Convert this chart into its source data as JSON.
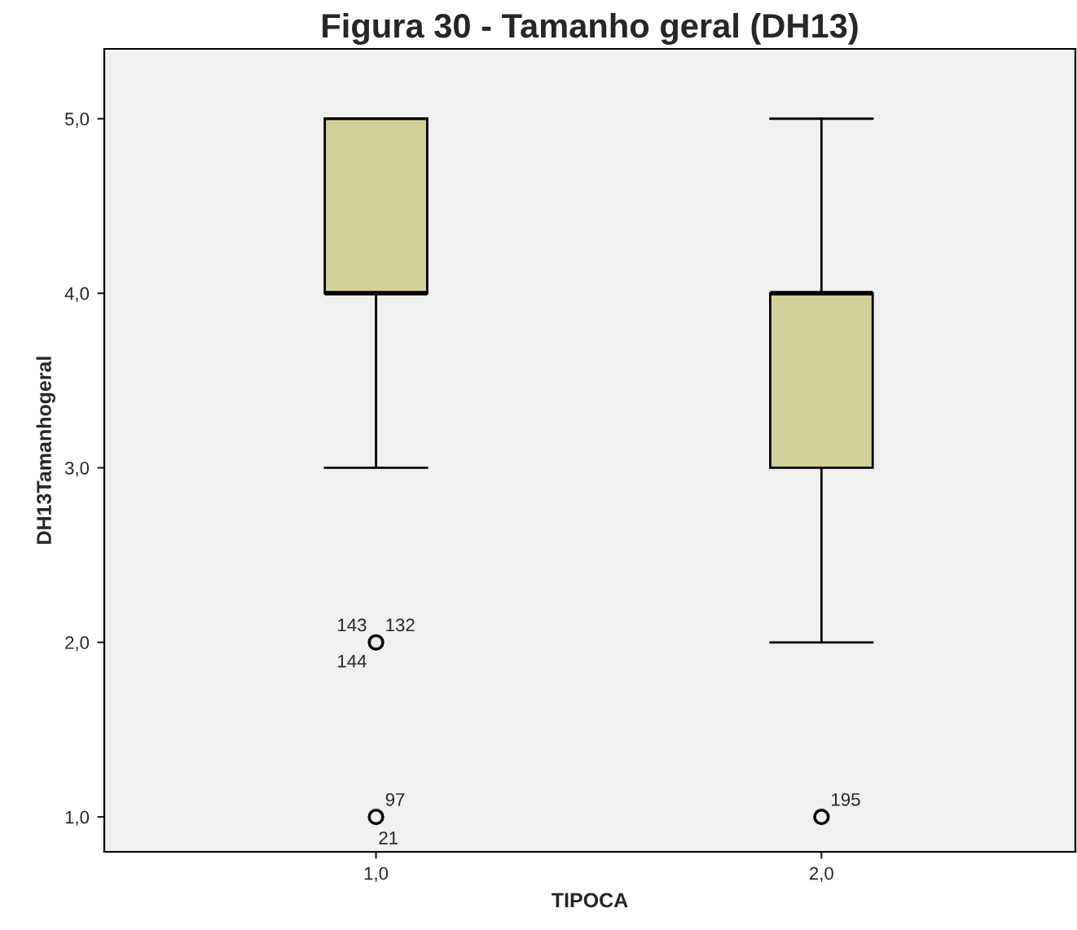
{
  "chart_data": {
    "type": "box",
    "title": "Figura 30 - Tamanho geral (DH13)",
    "xlabel": "TIPOCA",
    "ylabel": "DH13Tamanhogeral",
    "categories": [
      "1,0",
      "2,0"
    ],
    "boxes": [
      {
        "low": 3,
        "q1": 4,
        "median": 4,
        "q3": 5,
        "high": 5,
        "outliers": [
          2,
          1
        ]
      },
      {
        "low": 2,
        "q1": 3,
        "median": 4,
        "q3": 4,
        "high": 5,
        "outliers": [
          1
        ]
      }
    ],
    "color": "#d3cf99",
    "ylim": [
      0.8,
      5.4
    ],
    "yticks": [
      {
        "value": 1,
        "label": "1,0"
      },
      {
        "value": 2,
        "label": "2,0"
      },
      {
        "value": 3,
        "label": "3,0"
      },
      {
        "value": 4,
        "label": "4,0"
      },
      {
        "value": 5,
        "label": "5,0"
      }
    ],
    "grid": false,
    "annotations": [
      "143",
      "132",
      "144",
      "97",
      "21",
      "195"
    ]
  }
}
